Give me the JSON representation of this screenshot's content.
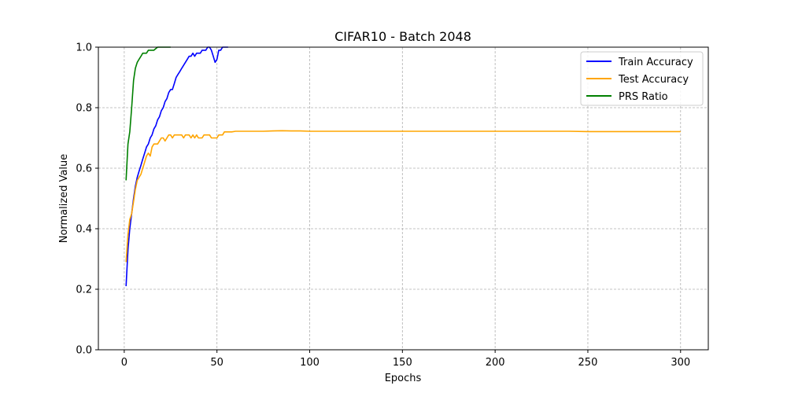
{
  "chart_data": {
    "type": "line",
    "title": "CIFAR10 - Batch 2048",
    "xlabel": "Epochs",
    "ylabel": "Normalized Value",
    "xlim": [
      -13.95,
      314.95
    ],
    "ylim": [
      0.0,
      1.0
    ],
    "xticks": [
      0,
      50,
      100,
      150,
      200,
      250,
      300
    ],
    "yticks": [
      0.0,
      0.2,
      0.4,
      0.6,
      0.8,
      1.0
    ],
    "xtick_labels": [
      "0",
      "50",
      "100",
      "150",
      "200",
      "250",
      "300"
    ],
    "ytick_labels": [
      "0.0",
      "0.2",
      "0.4",
      "0.6",
      "0.8",
      "1.0"
    ],
    "grid": true,
    "legend_position": "top-right",
    "series": [
      {
        "name": "Train Accuracy",
        "color": "#0000ff",
        "x": [
          1,
          2,
          3,
          4,
          5,
          6,
          7,
          8,
          9,
          10,
          11,
          12,
          13,
          14,
          15,
          16,
          17,
          18,
          19,
          20,
          21,
          22,
          23,
          24,
          25,
          26,
          27,
          28,
          29,
          30,
          31,
          32,
          33,
          34,
          35,
          36,
          37,
          38,
          39,
          40,
          41,
          42,
          43,
          44,
          45,
          46,
          47,
          48,
          49,
          50,
          51,
          52,
          53,
          54,
          55,
          56
        ],
        "y": [
          0.21,
          0.33,
          0.4,
          0.45,
          0.5,
          0.54,
          0.57,
          0.59,
          0.61,
          0.63,
          0.65,
          0.67,
          0.68,
          0.7,
          0.71,
          0.73,
          0.74,
          0.76,
          0.77,
          0.79,
          0.8,
          0.82,
          0.83,
          0.85,
          0.86,
          0.86,
          0.88,
          0.9,
          0.91,
          0.92,
          0.93,
          0.94,
          0.95,
          0.96,
          0.97,
          0.97,
          0.98,
          0.97,
          0.98,
          0.98,
          0.98,
          0.99,
          0.99,
          0.99,
          1.0,
          1.0,
          0.99,
          0.97,
          0.95,
          0.96,
          0.99,
          0.99,
          1.0,
          1.0,
          1.0,
          1.0
        ]
      },
      {
        "name": "Test Accuracy",
        "color": "#ffa500",
        "x": [
          1,
          2,
          3,
          4,
          5,
          6,
          7,
          8,
          9,
          10,
          11,
          12,
          13,
          14,
          15,
          16,
          17,
          18,
          19,
          20,
          21,
          22,
          23,
          24,
          25,
          26,
          27,
          28,
          29,
          30,
          31,
          32,
          33,
          34,
          35,
          36,
          37,
          38,
          39,
          40,
          41,
          42,
          43,
          44,
          45,
          46,
          47,
          48,
          49,
          50,
          51,
          52,
          53,
          54,
          55,
          56,
          57,
          58,
          60,
          65,
          70,
          75,
          80,
          85,
          90,
          95,
          100,
          110,
          120,
          130,
          140,
          150,
          160,
          170,
          180,
          190,
          200,
          210,
          220,
          230,
          240,
          250,
          260,
          270,
          280,
          290,
          300
        ],
        "y": [
          0.29,
          0.38,
          0.43,
          0.45,
          0.49,
          0.53,
          0.56,
          0.57,
          0.58,
          0.6,
          0.62,
          0.64,
          0.65,
          0.64,
          0.67,
          0.68,
          0.68,
          0.68,
          0.69,
          0.7,
          0.7,
          0.69,
          0.7,
          0.71,
          0.71,
          0.7,
          0.71,
          0.71,
          0.71,
          0.71,
          0.71,
          0.7,
          0.71,
          0.71,
          0.71,
          0.7,
          0.71,
          0.7,
          0.71,
          0.7,
          0.7,
          0.7,
          0.71,
          0.71,
          0.71,
          0.71,
          0.7,
          0.7,
          0.7,
          0.7,
          0.71,
          0.71,
          0.71,
          0.72,
          0.72,
          0.72,
          0.72,
          0.72,
          0.722,
          0.722,
          0.722,
          0.722,
          0.723,
          0.724,
          0.723,
          0.723,
          0.722,
          0.722,
          0.722,
          0.722,
          0.722,
          0.722,
          0.722,
          0.722,
          0.722,
          0.722,
          0.722,
          0.722,
          0.722,
          0.722,
          0.722,
          0.721,
          0.721,
          0.721,
          0.721,
          0.721,
          0.721
        ]
      },
      {
        "name": "PRS Ratio",
        "color": "#008000",
        "x": [
          1,
          2,
          3,
          4,
          5,
          6,
          7,
          8,
          9,
          10,
          11,
          12,
          13,
          14,
          15,
          16,
          17,
          18,
          19,
          20,
          21,
          22,
          23,
          24,
          25
        ],
        "y": [
          0.56,
          0.68,
          0.72,
          0.8,
          0.89,
          0.93,
          0.95,
          0.96,
          0.97,
          0.98,
          0.98,
          0.98,
          0.99,
          0.99,
          0.99,
          0.99,
          0.995,
          1.0,
          1.0,
          1.0,
          1.0,
          1.0,
          1.0,
          1.0,
          1.0
        ]
      }
    ]
  }
}
